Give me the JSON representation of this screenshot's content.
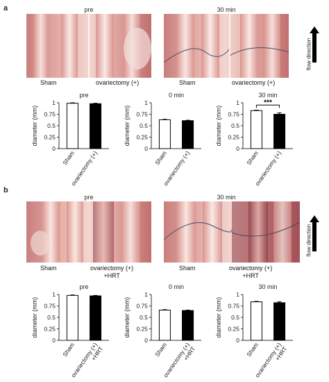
{
  "panel_a": {
    "label": "a",
    "photo_titles": [
      "pre",
      "30 min"
    ],
    "photo_captions": [
      "Sham",
      "ovariectomy (+)",
      "Sham",
      "ovariectomy (+)"
    ],
    "arrow_label": "flow direction"
  },
  "panel_b": {
    "label": "b",
    "photo_titles": [
      "pre",
      "30 min"
    ],
    "photo_captions": [
      "Sham",
      "ovariectomy (+)\n+HRT",
      "Sham",
      "ovariectomy (+)\n+HRT"
    ],
    "arrow_label": "flow direction"
  },
  "colors": {
    "sham_bar": "#ffffff",
    "treated_bar": "#000000",
    "axis": "#333333"
  },
  "chart_data": [
    {
      "type": "bar",
      "title": "pre",
      "ylabel": "diameter (mm)",
      "categories": [
        "Sham",
        "ovariectomy (+)"
      ],
      "values": [
        0.99,
        0.98
      ],
      "errors": [
        0.01,
        0.01
      ],
      "ylim": [
        0,
        1
      ],
      "yticks": [
        0,
        0.25,
        0.5,
        0.75,
        1
      ],
      "significance": ""
    },
    {
      "type": "bar",
      "title": "0 min",
      "ylabel": "diameter (mm)",
      "categories": [
        "Sham",
        "ovariectomy (+)"
      ],
      "values": [
        0.63,
        0.61
      ],
      "errors": [
        0.01,
        0.01
      ],
      "ylim": [
        0,
        1
      ],
      "yticks": [
        0,
        0.25,
        0.5,
        0.75,
        1
      ],
      "significance": ""
    },
    {
      "type": "bar",
      "title": "30 min",
      "ylabel": "diameter (mm)",
      "categories": [
        "Sham",
        "ovariectomy (+)"
      ],
      "values": [
        0.83,
        0.75
      ],
      "errors": [
        0.01,
        0.03
      ],
      "ylim": [
        0,
        1
      ],
      "yticks": [
        0,
        0.25,
        0.5,
        0.75,
        1
      ],
      "significance": "***"
    },
    {
      "type": "bar",
      "title": "pre",
      "ylabel": "diameter (mm)",
      "categories": [
        "Sham",
        "ovariectomy (+)\n+HRT"
      ],
      "values": [
        0.98,
        0.97
      ],
      "errors": [
        0.01,
        0.01
      ],
      "ylim": [
        0,
        1
      ],
      "yticks": [
        0,
        0.25,
        0.5,
        0.75,
        1
      ],
      "significance": ""
    },
    {
      "type": "bar",
      "title": "0 min",
      "ylabel": "diameter (mm)",
      "categories": [
        "Sham",
        "ovariectomy (+)\n+HRT"
      ],
      "values": [
        0.66,
        0.65
      ],
      "errors": [
        0.01,
        0.01
      ],
      "ylim": [
        0,
        1
      ],
      "yticks": [
        0,
        0.25,
        0.5,
        0.75,
        1
      ],
      "significance": ""
    },
    {
      "type": "bar",
      "title": "30 min",
      "ylabel": "diameter (mm)",
      "categories": [
        "Sham",
        "ovariectomy (+)\n+HRT"
      ],
      "values": [
        0.84,
        0.82
      ],
      "errors": [
        0.01,
        0.02
      ],
      "ylim": [
        0,
        1
      ],
      "yticks": [
        0,
        0.25,
        0.5,
        0.75,
        1
      ],
      "significance": ""
    }
  ]
}
